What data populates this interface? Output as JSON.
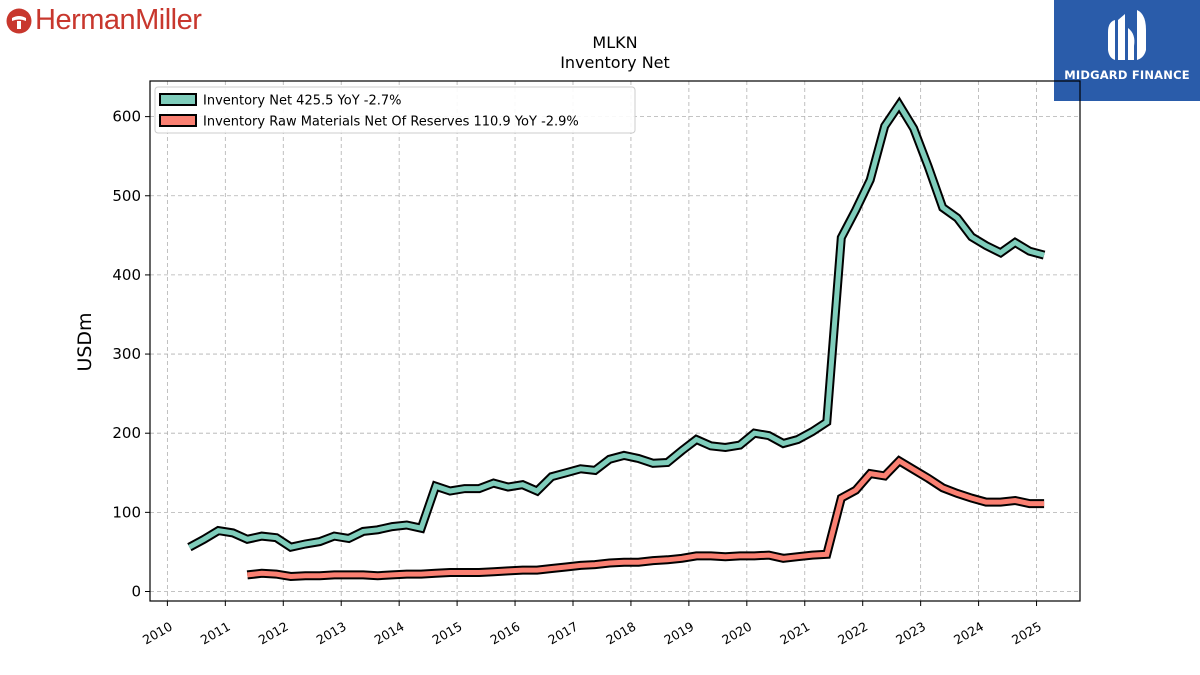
{
  "brand": {
    "left_logo_text": "HermanMiller",
    "right_logo_text": "MIDGARD FINANCE"
  },
  "chart_data": {
    "type": "line",
    "title": "MLKN",
    "subtitle": "Inventory Net",
    "ylabel": "USDm",
    "xlabel": "",
    "xlim": [
      2009.7,
      2025.75
    ],
    "ylim": [
      -12,
      645
    ],
    "yticks": [
      0,
      100,
      200,
      300,
      400,
      500,
      600
    ],
    "xticks": [
      2010,
      2011,
      2012,
      2013,
      2014,
      2015,
      2016,
      2017,
      2018,
      2019,
      2020,
      2021,
      2022,
      2023,
      2024,
      2025
    ],
    "grid": true,
    "legend_position": "top-left",
    "series": [
      {
        "name": "Inventory Net",
        "legend": "Inventory Net  425.5 YoY -2.7%",
        "color": "#7fcdbb",
        "x": [
          2010.38,
          2010.63,
          2010.88,
          2011.13,
          2011.38,
          2011.63,
          2011.88,
          2012.13,
          2012.38,
          2012.63,
          2012.88,
          2013.13,
          2013.38,
          2013.63,
          2013.88,
          2014.13,
          2014.38,
          2014.63,
          2014.88,
          2015.13,
          2015.38,
          2015.63,
          2015.88,
          2016.13,
          2016.38,
          2016.63,
          2016.88,
          2017.13,
          2017.38,
          2017.63,
          2017.88,
          2018.13,
          2018.38,
          2018.63,
          2018.88,
          2019.13,
          2019.38,
          2019.63,
          2019.88,
          2020.13,
          2020.38,
          2020.63,
          2020.88,
          2021.13,
          2021.38,
          2021.63,
          2021.88,
          2022.13,
          2022.38,
          2022.63,
          2022.88,
          2023.13,
          2023.38,
          2023.63,
          2023.88,
          2024.13,
          2024.38,
          2024.63,
          2024.88,
          2025.13
        ],
        "values": [
          56,
          66,
          77,
          74,
          66,
          70,
          68,
          56,
          60,
          63,
          70,
          67,
          76,
          78,
          82,
          84,
          80,
          133,
          127,
          130,
          130,
          137,
          132,
          135,
          127,
          145,
          150,
          155,
          153,
          167,
          172,
          168,
          162,
          163,
          178,
          192,
          184,
          182,
          185,
          200,
          197,
          187,
          192,
          202,
          214,
          447,
          482,
          520,
          588,
          615,
          585,
          537,
          485,
          472,
          448,
          437,
          428,
          441,
          430,
          425
        ]
      },
      {
        "name": "Inventory Raw Materials Net Of Reserves",
        "legend": "Inventory Raw Materials Net Of Reserves  110.9 YoY -2.9%",
        "color": "#fa8072",
        "x": [
          2011.38,
          2011.63,
          2011.88,
          2012.13,
          2012.38,
          2012.63,
          2012.88,
          2013.13,
          2013.38,
          2013.63,
          2013.88,
          2014.13,
          2014.38,
          2014.63,
          2014.88,
          2015.13,
          2015.38,
          2015.63,
          2015.88,
          2016.13,
          2016.38,
          2016.63,
          2016.88,
          2017.13,
          2017.38,
          2017.63,
          2017.88,
          2018.13,
          2018.38,
          2018.63,
          2018.88,
          2019.13,
          2019.38,
          2019.63,
          2019.88,
          2020.13,
          2020.38,
          2020.63,
          2020.88,
          2021.13,
          2021.38,
          2021.63,
          2021.88,
          2022.13,
          2022.38,
          2022.63,
          2022.88,
          2023.13,
          2023.38,
          2023.63,
          2023.88,
          2024.13,
          2024.38,
          2024.63,
          2024.88,
          2025.13
        ],
        "values": [
          21,
          23,
          22,
          19,
          20,
          20,
          21,
          21,
          21,
          20,
          21,
          22,
          22,
          23,
          24,
          24,
          24,
          25,
          26,
          27,
          27,
          29,
          31,
          33,
          34,
          36,
          37,
          37,
          39,
          40,
          42,
          45,
          45,
          44,
          45,
          45,
          46,
          42,
          44,
          46,
          47,
          118,
          128,
          149,
          146,
          165,
          154,
          143,
          131,
          124,
          118,
          113,
          113,
          115,
          111,
          111
        ]
      }
    ]
  }
}
